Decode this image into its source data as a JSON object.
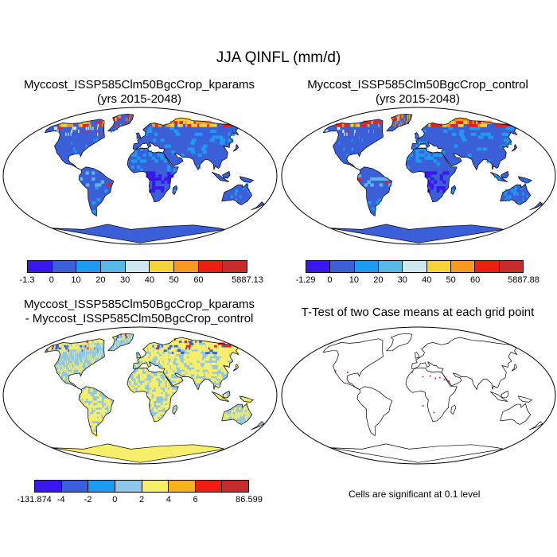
{
  "figure": {
    "title": "JJA QINFL (mm/d)"
  },
  "panels": [
    {
      "id": "kparams",
      "title_line1": "Myccost_ISSP585Clm50BgcCrop_kparams",
      "title_line2": "(yrs 2015-2048)",
      "colorbar": {
        "colors": [
          "#3a16f0",
          "#3a5fd9",
          "#1e9af0",
          "#5ab8e8",
          "#cfe8f0",
          "#f7d33a",
          "#f59a1e",
          "#ee1f12",
          "#c82b2b"
        ],
        "labels": [
          "-1.3",
          "0",
          "10",
          "20",
          "30",
          "40",
          "50",
          "60",
          "5887.13"
        ]
      }
    },
    {
      "id": "control",
      "title_line1": "Myccost_ISSP585Clm50BgcCrop_control",
      "title_line2": "(yrs 2015-2048)",
      "colorbar": {
        "colors": [
          "#3a16f0",
          "#3a5fd9",
          "#1e9af0",
          "#5ab8e8",
          "#cfe8f0",
          "#f7d33a",
          "#f59a1e",
          "#ee1f12",
          "#c82b2b"
        ],
        "labels": [
          "-1.29",
          "0",
          "10",
          "20",
          "30",
          "40",
          "50",
          "60",
          "5887.88"
        ]
      }
    },
    {
      "id": "difference",
      "title_line1": "Myccost_ISSP585Clm50BgcCrop_kparams",
      "title_line2": "- Myccost_ISSP585Clm50BgcCrop_control",
      "colorbar": {
        "colors": [
          "#3a16f0",
          "#3a5fd9",
          "#1e9af0",
          "#8fc7e8",
          "#f7ee6a",
          "#f7b21e",
          "#ee1f12",
          "#c82b2b"
        ],
        "labels": [
          "-131.874",
          "-4",
          "-2",
          "0",
          "2",
          "4",
          "6",
          "86.599"
        ]
      }
    },
    {
      "id": "ttest",
      "title_line1": "T-Test of two Case means at each grid point",
      "note": "Cells are significant at 0.1 level"
    }
  ],
  "map_colors": {
    "land_main": "#3a5fd9",
    "land_sparse": "#1e9af0",
    "arctic_hot": "#ee1f12",
    "diff_neutral": "#8fc7e8",
    "diff_positive": "#f7ee6a",
    "signif": "#ee1f12"
  }
}
